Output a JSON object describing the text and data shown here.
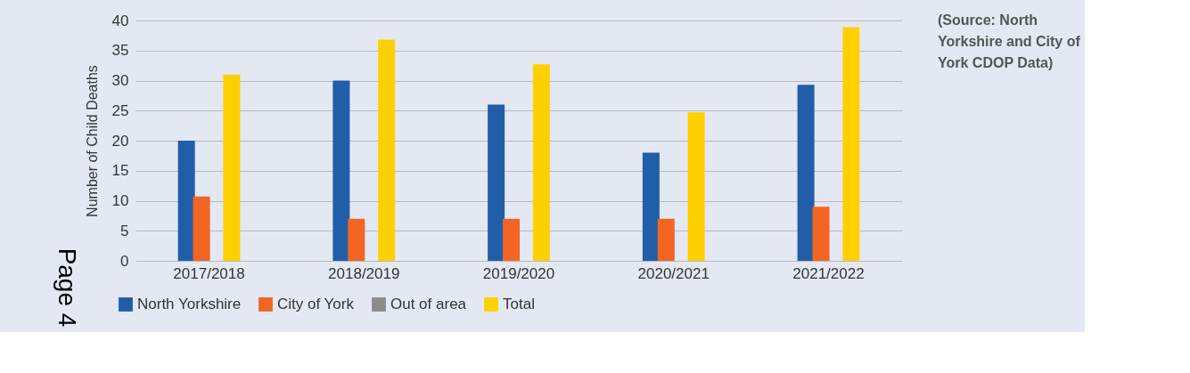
{
  "chart_data": {
    "type": "bar",
    "ylabel": "Number of Child Deaths",
    "categories": [
      "2017/2018",
      "2018/2019",
      "2019/2020",
      "2020/2021",
      "2021/2022"
    ],
    "series": [
      {
        "name": "North Yorkshire",
        "color": "#215ea9",
        "values": [
          20,
          30,
          26,
          18,
          29.3
        ]
      },
      {
        "name": "City of York",
        "color": "#f26522",
        "values": [
          10.7,
          7,
          7,
          7,
          9
        ]
      },
      {
        "name": "Out of area",
        "color": "#8c8c8c",
        "values": [
          0,
          0,
          0,
          0,
          0
        ]
      },
      {
        "name": "Total",
        "color": "#ffd000",
        "values": [
          31,
          36.8,
          32.7,
          24.7,
          38.9
        ]
      }
    ],
    "ylim": [
      0,
      40
    ],
    "yticks": [
      0,
      5,
      10,
      15,
      20,
      25,
      30,
      35,
      40
    ],
    "grid": "y",
    "legend": "bottom left",
    "annotations": [
      "(Source:  North Yorkshire and City of York CDOP Data)",
      "Page 4"
    ]
  }
}
